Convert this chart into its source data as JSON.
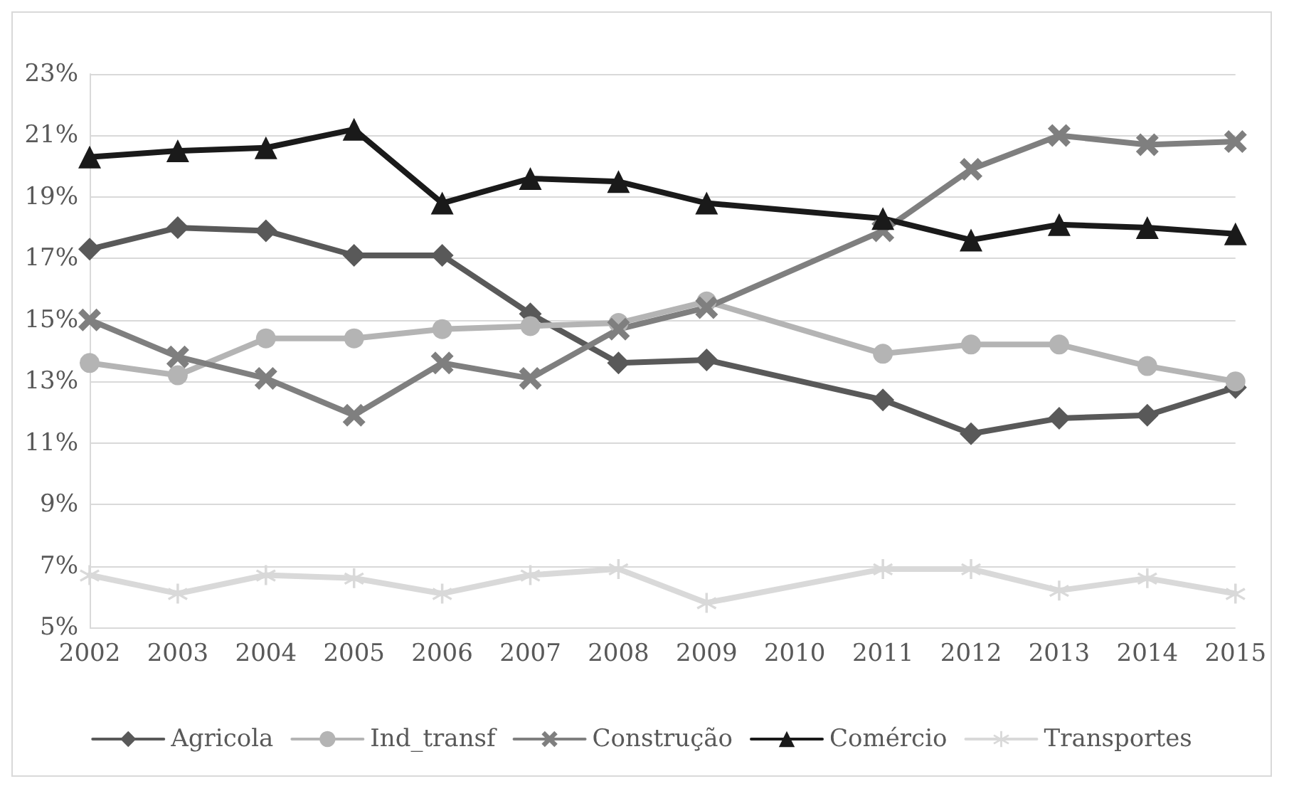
{
  "chart_data": {
    "type": "line",
    "x": [
      2002,
      2003,
      2004,
      2005,
      2006,
      2007,
      2008,
      2009,
      2011,
      2012,
      2013,
      2014,
      2015
    ],
    "xlim": [
      2002,
      2015
    ],
    "xticks": [
      2002,
      2003,
      2004,
      2005,
      2006,
      2007,
      2008,
      2009,
      2010,
      2011,
      2012,
      2013,
      2014,
      2015
    ],
    "ylim": [
      5,
      23
    ],
    "yticks": [
      {
        "value": 5,
        "label": "5%"
      },
      {
        "value": 7,
        "label": "7%"
      },
      {
        "value": 9,
        "label": "9%"
      },
      {
        "value": 11,
        "label": "11%"
      },
      {
        "value": 13,
        "label": "13%"
      },
      {
        "value": 15,
        "label": "15%"
      },
      {
        "value": 17,
        "label": "17%"
      },
      {
        "value": 19,
        "label": "19%"
      },
      {
        "value": 21,
        "label": "21%"
      },
      {
        "value": 23,
        "label": "23%"
      }
    ],
    "grid": "y",
    "legend": "bottom",
    "line_style": "solid",
    "series": [
      {
        "name": "Agricola",
        "color": "#595959",
        "marker": "diamond",
        "values": [
          17.3,
          18.0,
          17.9,
          17.1,
          17.1,
          15.2,
          13.6,
          13.7,
          12.4,
          11.3,
          11.8,
          11.9,
          12.8
        ]
      },
      {
        "name": "Ind_transf",
        "color": "#b4b4b4",
        "marker": "circle",
        "values": [
          13.6,
          13.2,
          14.4,
          14.4,
          14.7,
          14.8,
          14.9,
          15.6,
          13.9,
          14.2,
          14.2,
          13.5,
          13.0
        ]
      },
      {
        "name": "Construção",
        "color": "#7f7f7f",
        "marker": "cross",
        "values": [
          15.0,
          13.8,
          13.1,
          11.9,
          13.6,
          13.1,
          14.7,
          15.4,
          17.9,
          19.9,
          21.0,
          20.7,
          20.8
        ]
      },
      {
        "name": "Comércio",
        "color": "#1a1a1a",
        "marker": "triangle",
        "values": [
          20.3,
          20.5,
          20.6,
          21.2,
          18.8,
          19.6,
          19.5,
          18.8,
          18.3,
          17.6,
          18.1,
          18.0,
          17.8
        ]
      },
      {
        "name": "Transportes",
        "color": "#d9d9d9",
        "marker": "star",
        "values": [
          6.7,
          6.1,
          6.7,
          6.6,
          6.1,
          6.7,
          6.9,
          5.8,
          6.9,
          6.9,
          6.2,
          6.6,
          6.1
        ]
      }
    ]
  }
}
